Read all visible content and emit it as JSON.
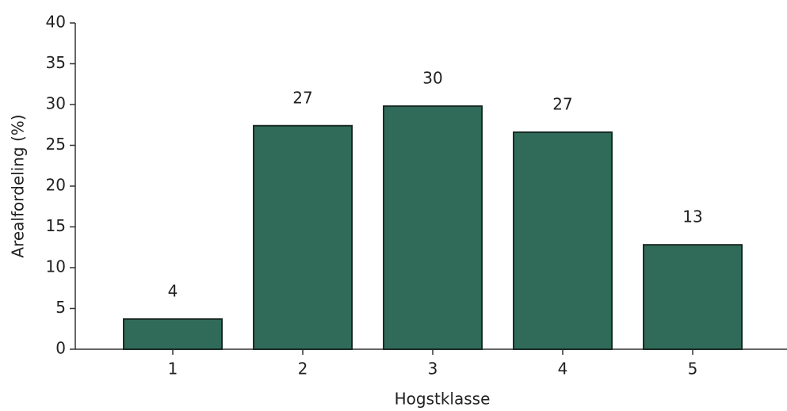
{
  "chart_data": {
    "type": "bar",
    "x_label": "Hogstklasse",
    "y_label": "Arealfordeling (%)",
    "categories": [
      "1",
      "2",
      "3",
      "4",
      "5"
    ],
    "values": [
      3.7,
      27.4,
      29.8,
      26.6,
      12.8
    ],
    "value_labels": [
      "4",
      "27",
      "30",
      "27",
      "13"
    ],
    "color": "#2f6b58",
    "ylim": [
      0,
      40
    ],
    "yticks": [
      0,
      5,
      10,
      15,
      20,
      25,
      30,
      35,
      40
    ],
    "grid": false
  }
}
